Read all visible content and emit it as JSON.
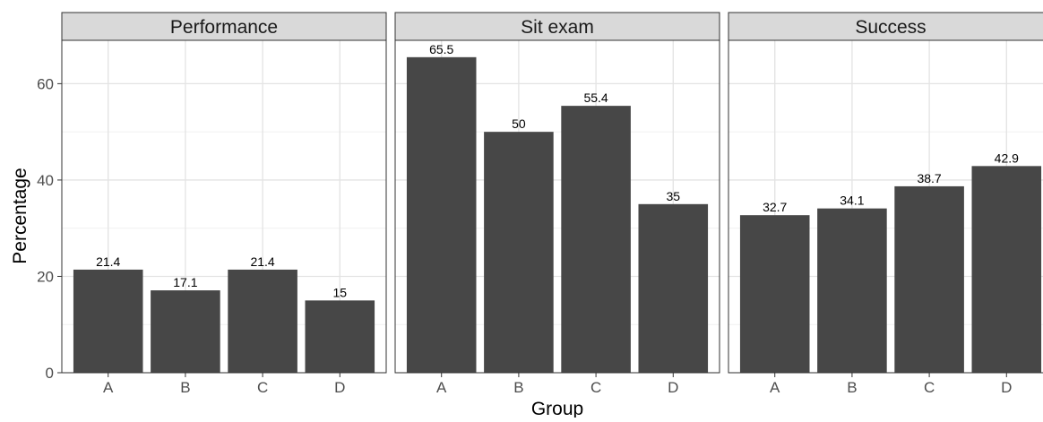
{
  "chart_data": {
    "type": "bar",
    "xlabel": "Group",
    "ylabel": "Percentage",
    "ylim": [
      0,
      69
    ],
    "yticks": [
      0,
      20,
      40,
      60
    ],
    "grid": true,
    "bar_color": "#474747",
    "panels": [
      {
        "title": "Performance",
        "categories": [
          "A",
          "B",
          "C",
          "D"
        ],
        "values": [
          21.4,
          17.1,
          21.4,
          15
        ],
        "labels": [
          "21.4",
          "17.1",
          "21.4",
          "15"
        ]
      },
      {
        "title": "Sit exam",
        "categories": [
          "A",
          "B",
          "C",
          "D"
        ],
        "values": [
          65.5,
          50,
          55.4,
          35
        ],
        "labels": [
          "65.5",
          "50",
          "55.4",
          "35"
        ]
      },
      {
        "title": "Success",
        "categories": [
          "A",
          "B",
          "C",
          "D"
        ],
        "values": [
          32.7,
          34.1,
          38.7,
          42.9
        ],
        "labels": [
          "32.7",
          "34.1",
          "38.7",
          "42.9"
        ]
      }
    ]
  }
}
